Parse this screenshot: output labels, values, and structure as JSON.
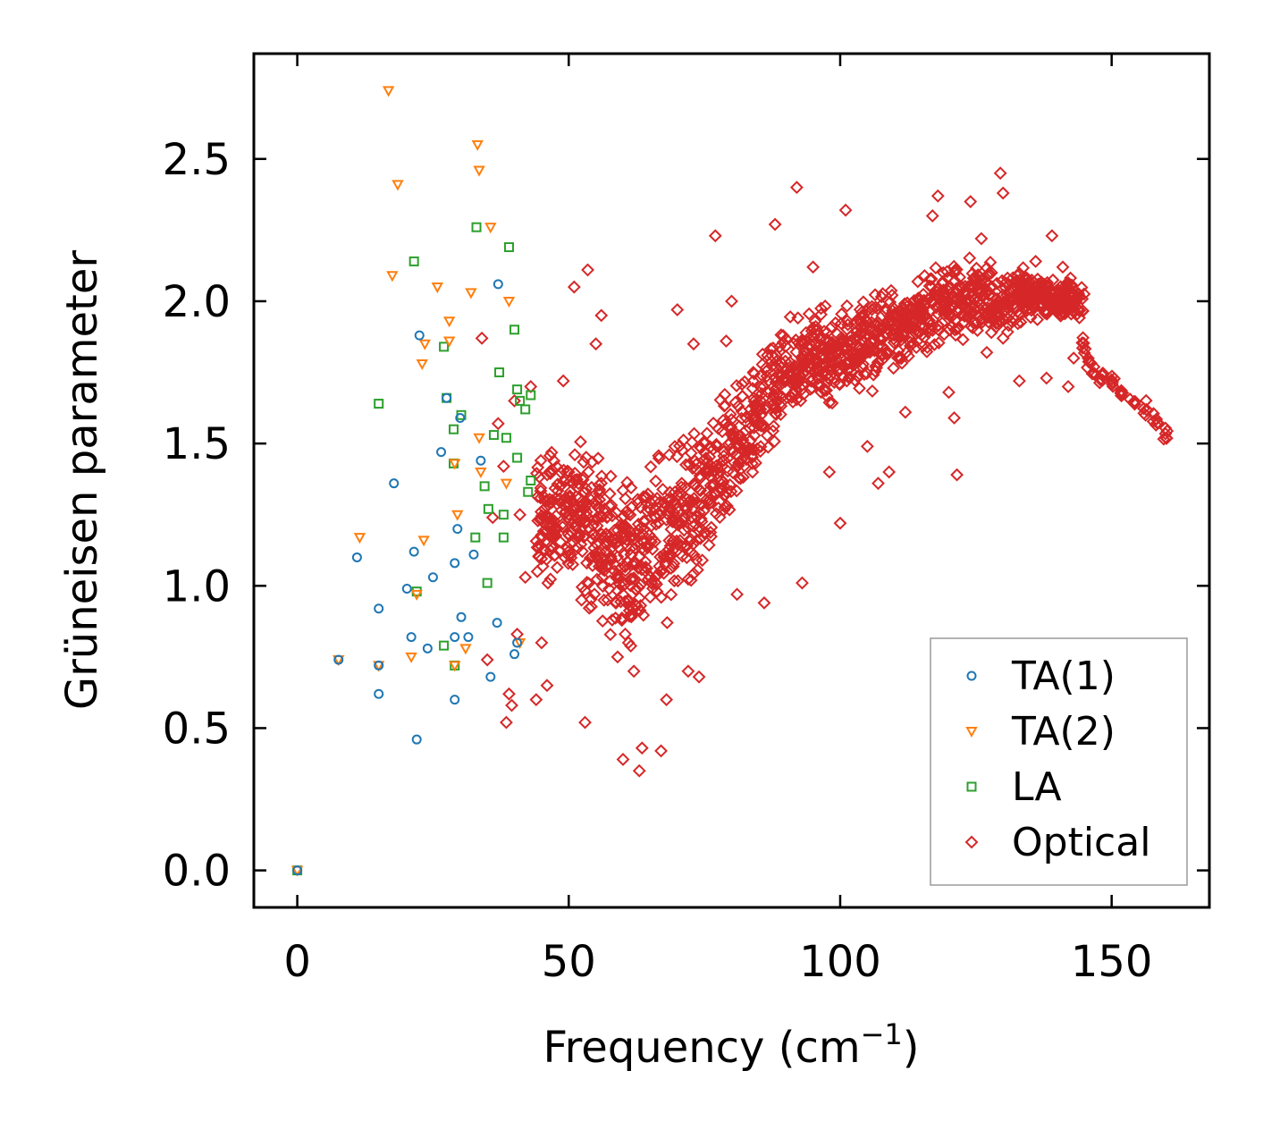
{
  "chart_data": {
    "type": "scatter",
    "xlabel": "Frequency (cm",
    "xlabel_sup": "−1",
    "xlabel_close": ")",
    "ylabel": "Grüneisen parameter",
    "xlim": [
      -8,
      168
    ],
    "ylim": [
      -0.13,
      2.87
    ],
    "xticks": [
      0,
      50,
      100,
      150
    ],
    "xtick_labels": [
      "0",
      "50",
      "100",
      "150"
    ],
    "yticks": [
      0.0,
      0.5,
      1.0,
      1.5,
      2.0,
      2.5
    ],
    "ytick_labels": [
      "0.0",
      "0.5",
      "1.0",
      "1.5",
      "2.0",
      "2.5"
    ],
    "legend_position": "lower-right",
    "series": [
      {
        "name": "TA(1)",
        "marker": "circle",
        "color": "#1f77b4",
        "points": [
          [
            0,
            0
          ],
          [
            7.6,
            0.74
          ],
          [
            11,
            1.1
          ],
          [
            15,
            0.92
          ],
          [
            15,
            0.72
          ],
          [
            15,
            0.62
          ],
          [
            17.8,
            1.36
          ],
          [
            20.2,
            0.99
          ],
          [
            21,
            0.82
          ],
          [
            21.5,
            1.12
          ],
          [
            22,
            0.46
          ],
          [
            22.5,
            1.88
          ],
          [
            24,
            0.78
          ],
          [
            25,
            1.03
          ],
          [
            26.5,
            1.47
          ],
          [
            27.5,
            1.66
          ],
          [
            29,
            0.82
          ],
          [
            29,
            1.08
          ],
          [
            29,
            0.6
          ],
          [
            29.5,
            1.2
          ],
          [
            30,
            1.59
          ],
          [
            30.2,
            0.89
          ],
          [
            31.5,
            0.82
          ],
          [
            32.5,
            1.11
          ],
          [
            33.8,
            1.44
          ],
          [
            35.6,
            0.68
          ],
          [
            36.8,
            0.87
          ],
          [
            37,
            2.06
          ],
          [
            40,
            0.76
          ],
          [
            40.5,
            0.8
          ]
        ]
      },
      {
        "name": "TA(2)",
        "marker": "triangle-down",
        "color": "#ff7f0e",
        "points": [
          [
            0,
            0
          ],
          [
            7.6,
            0.74
          ],
          [
            11.5,
            1.17
          ],
          [
            15,
            0.72
          ],
          [
            16.8,
            2.74
          ],
          [
            17.5,
            2.09
          ],
          [
            18.5,
            2.41
          ],
          [
            21,
            0.75
          ],
          [
            22,
            0.97
          ],
          [
            23,
            1.78
          ],
          [
            23.3,
            1.16
          ],
          [
            23.5,
            1.85
          ],
          [
            25.8,
            2.05
          ],
          [
            28,
            1.93
          ],
          [
            28,
            1.86
          ],
          [
            29,
            1.43
          ],
          [
            29,
            0.72
          ],
          [
            29.5,
            1.25
          ],
          [
            31,
            0.78
          ],
          [
            32,
            2.03
          ],
          [
            33.2,
            2.55
          ],
          [
            33.5,
            2.46
          ],
          [
            33.5,
            1.52
          ],
          [
            33.8,
            1.4
          ],
          [
            35.6,
            2.26
          ],
          [
            38.5,
            1.36
          ],
          [
            39,
            2.0
          ],
          [
            41,
            0.8
          ]
        ]
      },
      {
        "name": "LA",
        "marker": "square",
        "color": "#2ca02c",
        "points": [
          [
            0,
            0
          ],
          [
            21.5,
            2.14
          ],
          [
            22,
            0.98
          ],
          [
            15,
            1.64
          ],
          [
            27,
            1.84
          ],
          [
            27.5,
            1.66
          ],
          [
            27,
            0.79
          ],
          [
            28.8,
            1.43
          ],
          [
            28.8,
            1.55
          ],
          [
            29,
            0.72
          ],
          [
            30.2,
            1.6
          ],
          [
            32.8,
            1.17
          ],
          [
            33,
            2.26
          ],
          [
            34.5,
            1.35
          ],
          [
            35,
            1.01
          ],
          [
            35.2,
            1.27
          ],
          [
            36.2,
            1.53
          ],
          [
            37.2,
            1.75
          ],
          [
            38,
            1.25
          ],
          [
            38,
            1.17
          ],
          [
            38.5,
            1.52
          ],
          [
            39,
            2.19
          ],
          [
            40,
            1.9
          ],
          [
            40.5,
            1.45
          ],
          [
            40.5,
            1.69
          ],
          [
            41,
            1.65
          ],
          [
            42,
            1.62
          ],
          [
            42.5,
            1.33
          ],
          [
            43,
            1.37
          ],
          [
            43,
            1.67
          ]
        ]
      },
      {
        "name": "Optical",
        "marker": "diamond",
        "color": "#d62728",
        "outliers": [
          [
            34,
            1.87
          ],
          [
            35,
            0.74
          ],
          [
            36,
            1.24
          ],
          [
            37,
            1.57
          ],
          [
            38,
            1.42
          ],
          [
            38.5,
            0.52
          ],
          [
            39,
            0.62
          ],
          [
            39.5,
            0.58
          ],
          [
            40,
            1.65
          ],
          [
            40.5,
            0.83
          ],
          [
            41,
            1.25
          ],
          [
            42,
            1.03
          ],
          [
            43,
            1.7
          ],
          [
            44,
            0.6
          ],
          [
            45,
            0.8
          ],
          [
            46,
            0.65
          ],
          [
            49,
            1.72
          ],
          [
            50,
            1.4
          ],
          [
            51,
            2.05
          ],
          [
            52,
            1.18
          ],
          [
            53,
            0.52
          ],
          [
            53.5,
            2.11
          ],
          [
            55,
            1.85
          ],
          [
            56,
            1.95
          ],
          [
            58,
            0.88
          ],
          [
            59,
            0.75
          ],
          [
            60,
            0.39
          ],
          [
            61,
            0.8
          ],
          [
            62,
            0.7
          ],
          [
            63,
            0.35
          ],
          [
            63.5,
            0.43
          ],
          [
            65,
            0.96
          ],
          [
            67,
            0.42
          ],
          [
            68,
            0.6
          ],
          [
            70,
            1.97
          ],
          [
            72,
            0.7
          ],
          [
            73,
            1.85
          ],
          [
            74,
            0.68
          ],
          [
            77,
            2.23
          ],
          [
            79,
            1.86
          ],
          [
            80,
            2.0
          ],
          [
            81,
            0.97
          ],
          [
            84,
            1.75
          ],
          [
            86,
            0.94
          ],
          [
            88,
            2.27
          ],
          [
            92,
            2.4
          ],
          [
            93,
            1.01
          ],
          [
            95,
            2.12
          ],
          [
            98,
            1.4
          ],
          [
            100,
            1.22
          ],
          [
            101,
            2.32
          ],
          [
            104,
            1.95
          ],
          [
            105,
            1.49
          ],
          [
            107,
            1.36
          ],
          [
            109,
            1.4
          ],
          [
            112,
            1.61
          ],
          [
            117,
            2.3
          ],
          [
            118,
            2.37
          ],
          [
            119,
            2.1
          ],
          [
            120,
            1.68
          ],
          [
            121,
            1.59
          ],
          [
            121.5,
            1.39
          ],
          [
            124,
            2.35
          ],
          [
            126,
            2.22
          ],
          [
            127,
            1.82
          ],
          [
            129.5,
            2.45
          ],
          [
            130,
            2.38
          ],
          [
            133,
            1.72
          ],
          [
            136,
            2.14
          ],
          [
            138,
            1.73
          ],
          [
            139,
            2.23
          ],
          [
            141,
            2.12
          ],
          [
            142,
            1.7
          ],
          [
            143,
            1.8
          ]
        ],
        "density": [
          [
            50,
            1.25,
            0.35
          ],
          [
            55,
            1.2,
            0.4
          ],
          [
            60,
            1.05,
            0.4
          ],
          [
            65,
            1.15,
            0.4
          ],
          [
            70,
            1.2,
            0.38
          ],
          [
            75,
            1.35,
            0.35
          ],
          [
            80,
            1.45,
            0.32
          ],
          [
            85,
            1.6,
            0.28
          ],
          [
            90,
            1.75,
            0.22
          ],
          [
            95,
            1.8,
            0.2
          ],
          [
            100,
            1.82,
            0.2
          ],
          [
            105,
            1.85,
            0.2
          ],
          [
            110,
            1.9,
            0.2
          ],
          [
            115,
            1.95,
            0.18
          ],
          [
            120,
            2.0,
            0.18
          ],
          [
            125,
            2.02,
            0.18
          ],
          [
            130,
            2.0,
            0.15
          ],
          [
            135,
            2.03,
            0.12
          ],
          [
            140,
            2.0,
            0.1
          ]
        ],
        "tail": [
          [
            145,
            1.85
          ],
          [
            146,
            1.78
          ],
          [
            147,
            1.75
          ],
          [
            148,
            1.73
          ],
          [
            150,
            1.72
          ],
          [
            152,
            1.68
          ],
          [
            154,
            1.65
          ],
          [
            156,
            1.62
          ],
          [
            158,
            1.59
          ],
          [
            160,
            1.54
          ]
        ]
      }
    ]
  }
}
